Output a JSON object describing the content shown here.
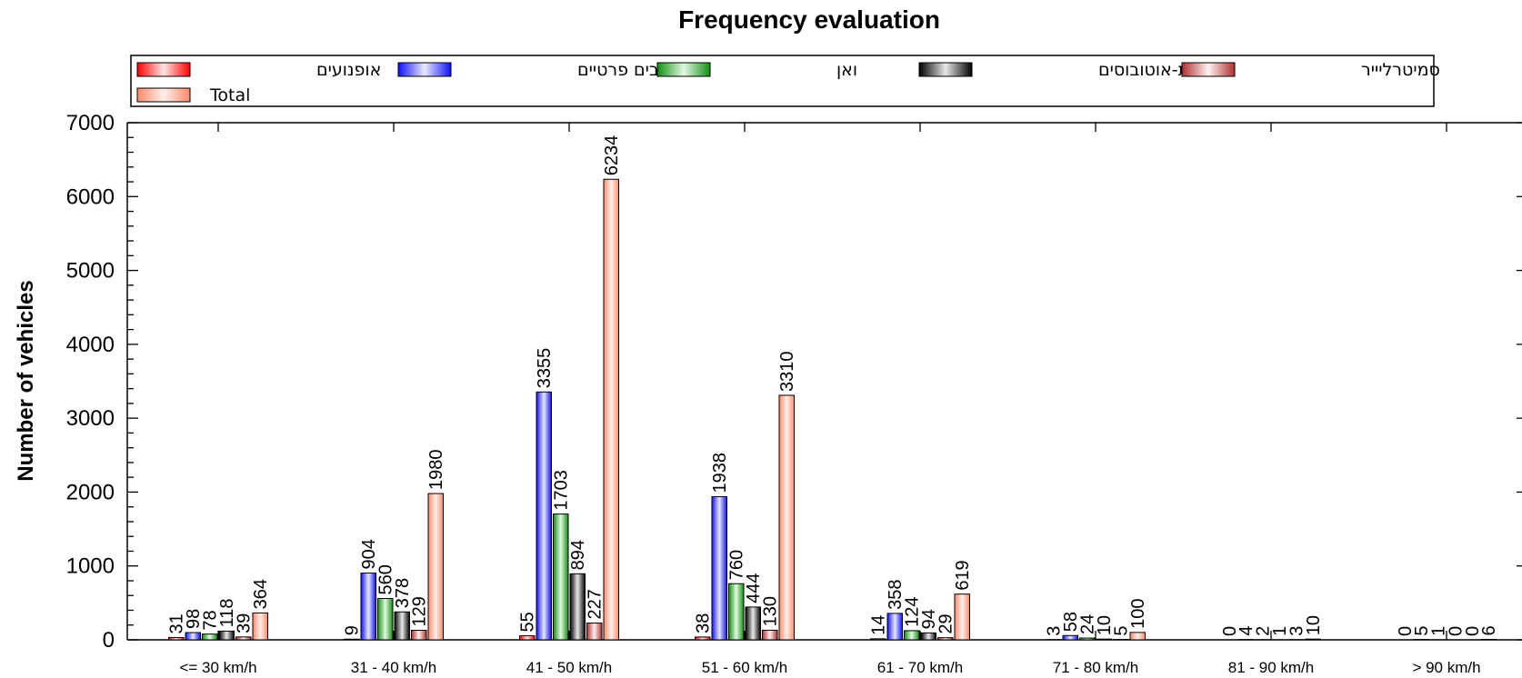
{
  "chart_data": {
    "type": "bar",
    "title": "Frequency evaluation",
    "xlabel": "",
    "ylabel": "Number of vehicles",
    "ylim": [
      0,
      7000
    ],
    "yticks": [
      0,
      1000,
      2000,
      3000,
      4000,
      5000,
      6000,
      7000
    ],
    "categories": [
      "<=  30  km/h",
      "31 -  40  km/h",
      "41 -  50  km/h",
      "51 -  60  km/h",
      "61 -  70  km/h",
      "71 -  80  km/h",
      "81 - 90  km/h",
      "> 90  km/h"
    ],
    "legend_position": "top",
    "series": [
      {
        "name": "אופנועים",
        "color": "#ff2020",
        "values": [
          31,
          9,
          55,
          38,
          14,
          3,
          0,
          0
        ]
      },
      {
        "name": "רכבים פרטיים",
        "color": "#3030ff",
        "values": [
          98,
          904,
          3355,
          1938,
          358,
          58,
          4,
          5
        ]
      },
      {
        "name": "ואן",
        "color": "#20a020",
        "values": [
          78,
          560,
          1703,
          760,
          124,
          24,
          2,
          1
        ]
      },
      {
        "name": "משאיות-אוטובוסים",
        "color": "#202020",
        "values": [
          118,
          378,
          894,
          444,
          94,
          10,
          1,
          0
        ]
      },
      {
        "name": "סמיטרליייר",
        "color": "#c04040",
        "values": [
          39,
          129,
          227,
          130,
          29,
          5,
          3,
          0
        ]
      },
      {
        "name": "Total",
        "color": "#ff9070",
        "values": [
          364,
          1980,
          6234,
          3310,
          619,
          100,
          10,
          6
        ]
      }
    ]
  }
}
